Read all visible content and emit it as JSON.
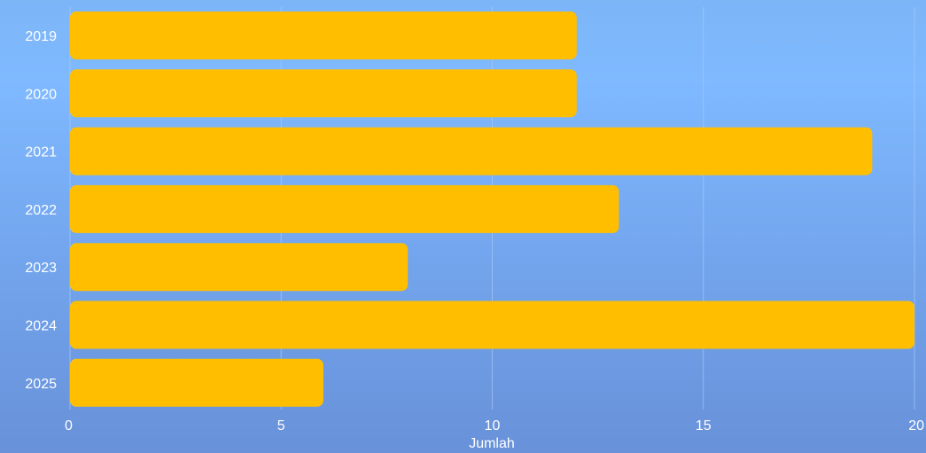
{
  "chart_data": {
    "type": "bar",
    "orientation": "horizontal",
    "categories": [
      "2019",
      "2020",
      "2021",
      "2022",
      "2023",
      "2024",
      "2025"
    ],
    "values": [
      12,
      12,
      19,
      13,
      8,
      20,
      6
    ],
    "xlabel": "Jumlah",
    "ylabel": "",
    "xlim": [
      0,
      20
    ],
    "xticks": [
      "0",
      "5",
      "10",
      "15",
      "20"
    ],
    "grid": true,
    "legend": "none",
    "colors": {
      "bar": "#ffbf00",
      "grid": "#a9c9f5",
      "text": "#ffffff"
    }
  }
}
